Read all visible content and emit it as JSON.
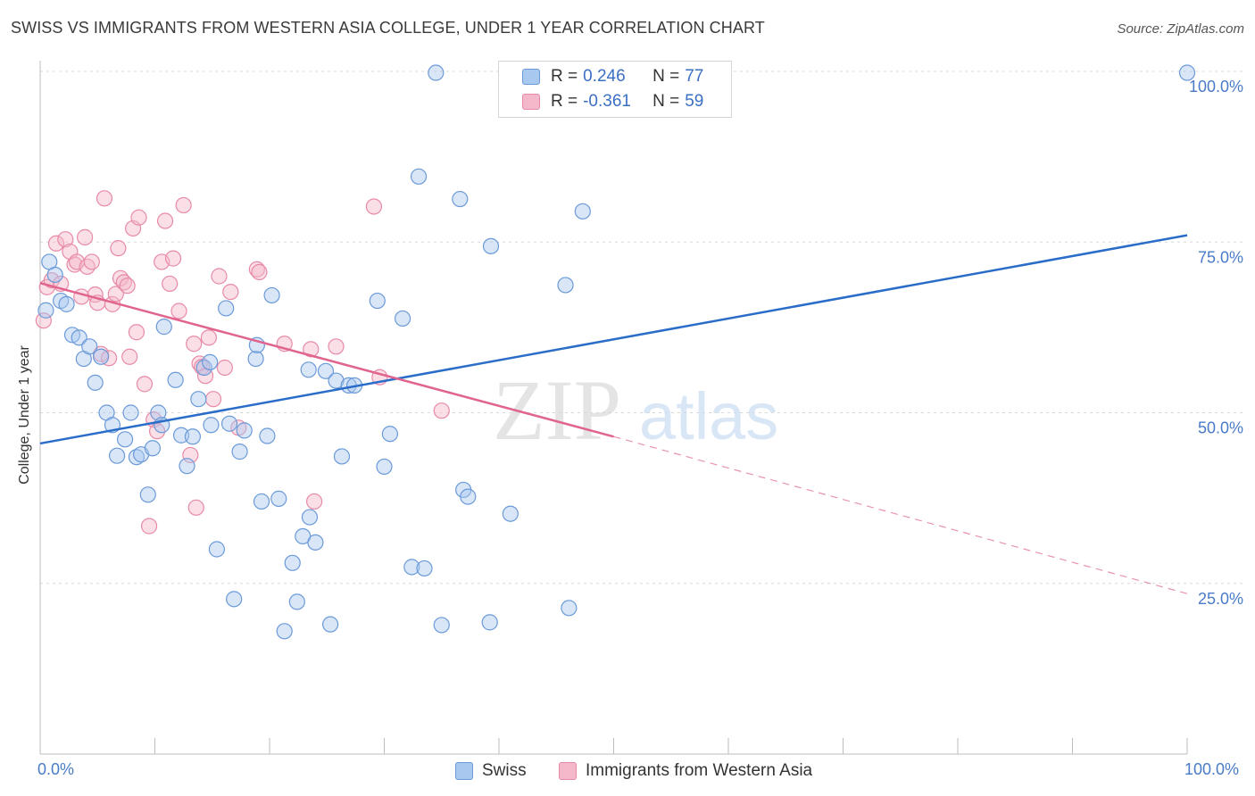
{
  "header": {
    "title": "SWISS VS IMMIGRANTS FROM WESTERN ASIA COLLEGE, UNDER 1 YEAR CORRELATION CHART",
    "source": "Source: ZipAtlas.com"
  },
  "legend_top": {
    "rows": [
      {
        "r_label": "R =",
        "r_value": "0.246",
        "n_label": "N =",
        "n_value": "77"
      },
      {
        "r_label": "R =",
        "r_value": "-0.361",
        "n_label": "N =",
        "n_value": "59"
      }
    ]
  },
  "legend_bottom": {
    "swiss": "Swiss",
    "immigrants": "Immigrants from Western Asia"
  },
  "axes": {
    "ylabel": "College, Under 1 year",
    "x_min_label": "0.0%",
    "x_max_label": "100.0%",
    "y_ticks": [
      "100.0%",
      "75.0%",
      "50.0%",
      "25.0%"
    ]
  },
  "watermark": {
    "part1": "ZIP",
    "part2": "atlas"
  },
  "colors": {
    "swiss_fill": "#a9c8ef",
    "swiss_stroke": "#6b9ad8",
    "swiss_line": "#2a6dc9",
    "imm_fill": "#f5b8ca",
    "imm_stroke": "#e88aa7",
    "imm_line": "#e0648e",
    "tick_label": "#4a7bc8"
  },
  "chart_data": {
    "type": "scatter",
    "xlabel": "",
    "ylabel": "College, Under 1 year",
    "xlim": [
      0,
      100
    ],
    "ylim": [
      0,
      100
    ],
    "grid": true,
    "legend_placement": "top-center",
    "series": [
      {
        "name": "Swiss",
        "r": 0.246,
        "n": 77,
        "trend": {
          "x": [
            0,
            100
          ],
          "y": [
            45.5,
            76.0
          ]
        },
        "points": [
          [
            0.5,
            65.0
          ],
          [
            0.8,
            72.1
          ],
          [
            1.3,
            70.2
          ],
          [
            1.8,
            66.4
          ],
          [
            2.3,
            65.9
          ],
          [
            2.8,
            61.4
          ],
          [
            3.4,
            61.0
          ],
          [
            3.8,
            57.9
          ],
          [
            4.3,
            59.7
          ],
          [
            4.8,
            54.4
          ],
          [
            5.3,
            58.2
          ],
          [
            5.8,
            50.0
          ],
          [
            6.3,
            48.2
          ],
          [
            6.7,
            43.7
          ],
          [
            7.4,
            46.1
          ],
          [
            7.9,
            50.0
          ],
          [
            8.4,
            43.5
          ],
          [
            8.8,
            43.9
          ],
          [
            9.4,
            38.0
          ],
          [
            9.8,
            44.8
          ],
          [
            10.3,
            50.0
          ],
          [
            10.6,
            48.2
          ],
          [
            10.8,
            62.6
          ],
          [
            11.8,
            54.8
          ],
          [
            12.3,
            46.7
          ],
          [
            12.8,
            42.2
          ],
          [
            13.3,
            46.5
          ],
          [
            13.8,
            52.0
          ],
          [
            14.3,
            56.6
          ],
          [
            14.8,
            57.4
          ],
          [
            14.9,
            48.2
          ],
          [
            15.4,
            30.0
          ],
          [
            16.2,
            65.3
          ],
          [
            16.5,
            48.4
          ],
          [
            16.9,
            22.7
          ],
          [
            17.4,
            44.3
          ],
          [
            17.8,
            47.4
          ],
          [
            18.8,
            57.9
          ],
          [
            18.9,
            59.9
          ],
          [
            19.3,
            37.0
          ],
          [
            19.8,
            46.6
          ],
          [
            20.2,
            67.2
          ],
          [
            20.8,
            37.4
          ],
          [
            21.3,
            18.0
          ],
          [
            22.0,
            28.0
          ],
          [
            22.4,
            22.3
          ],
          [
            22.9,
            31.9
          ],
          [
            23.4,
            56.3
          ],
          [
            23.5,
            34.7
          ],
          [
            24.0,
            31.0
          ],
          [
            24.9,
            56.1
          ],
          [
            25.3,
            19.0
          ],
          [
            25.8,
            54.7
          ],
          [
            26.3,
            43.6
          ],
          [
            26.9,
            54.0
          ],
          [
            27.4,
            54.0
          ],
          [
            29.4,
            66.4
          ],
          [
            30.0,
            42.1
          ],
          [
            30.5,
            46.9
          ],
          [
            31.6,
            63.8
          ],
          [
            32.4,
            27.4
          ],
          [
            33.0,
            84.6
          ],
          [
            33.5,
            27.2
          ],
          [
            34.5,
            99.8
          ],
          [
            35.0,
            18.9
          ],
          [
            36.6,
            81.3
          ],
          [
            36.9,
            38.7
          ],
          [
            37.3,
            37.7
          ],
          [
            39.3,
            74.4
          ],
          [
            39.2,
            19.3
          ],
          [
            41.0,
            35.2
          ],
          [
            41.9,
            99.8
          ],
          [
            43.0,
            99.8
          ],
          [
            45.8,
            68.7
          ],
          [
            46.1,
            21.4
          ],
          [
            47.3,
            79.5
          ],
          [
            100.0,
            99.8
          ]
        ]
      },
      {
        "name": "Immigrants from Western Asia",
        "r": -0.361,
        "n": 59,
        "trend": {
          "x": [
            0,
            50
          ],
          "y": [
            69.0,
            46.5
          ]
        },
        "trend_dashed": {
          "x": [
            50,
            100
          ],
          "y": [
            46.5,
            23.5
          ]
        },
        "points": [
          [
            0.3,
            63.5
          ],
          [
            0.6,
            68.4
          ],
          [
            1.0,
            69.4
          ],
          [
            1.4,
            74.8
          ],
          [
            1.8,
            68.9
          ],
          [
            2.2,
            75.4
          ],
          [
            2.6,
            73.6
          ],
          [
            3.0,
            71.7
          ],
          [
            3.2,
            72.1
          ],
          [
            3.6,
            67.0
          ],
          [
            3.9,
            75.7
          ],
          [
            4.1,
            71.4
          ],
          [
            4.5,
            72.1
          ],
          [
            4.8,
            67.3
          ],
          [
            5.0,
            66.1
          ],
          [
            5.3,
            58.6
          ],
          [
            5.6,
            81.4
          ],
          [
            6.0,
            58.0
          ],
          [
            6.3,
            65.9
          ],
          [
            6.6,
            67.4
          ],
          [
            6.8,
            74.1
          ],
          [
            7.0,
            69.7
          ],
          [
            7.3,
            69.1
          ],
          [
            7.6,
            68.6
          ],
          [
            7.8,
            58.2
          ],
          [
            8.1,
            77.0
          ],
          [
            8.4,
            61.8
          ],
          [
            8.6,
            78.6
          ],
          [
            9.1,
            54.2
          ],
          [
            9.5,
            33.4
          ],
          [
            9.9,
            49.0
          ],
          [
            10.2,
            47.3
          ],
          [
            10.6,
            72.1
          ],
          [
            10.9,
            78.1
          ],
          [
            11.3,
            68.9
          ],
          [
            11.6,
            72.6
          ],
          [
            12.1,
            64.9
          ],
          [
            12.5,
            80.4
          ],
          [
            13.1,
            43.8
          ],
          [
            13.4,
            60.1
          ],
          [
            13.6,
            36.1
          ],
          [
            13.9,
            57.2
          ],
          [
            14.1,
            56.7
          ],
          [
            14.4,
            55.4
          ],
          [
            14.7,
            61.0
          ],
          [
            15.1,
            52.0
          ],
          [
            15.6,
            70.0
          ],
          [
            16.1,
            56.6
          ],
          [
            16.6,
            67.7
          ],
          [
            17.3,
            47.8
          ],
          [
            18.9,
            71.0
          ],
          [
            19.1,
            70.6
          ],
          [
            21.3,
            60.1
          ],
          [
            23.6,
            59.3
          ],
          [
            23.9,
            37.0
          ],
          [
            25.8,
            59.7
          ],
          [
            29.1,
            80.2
          ],
          [
            29.6,
            55.2
          ],
          [
            35.0,
            50.3
          ]
        ]
      }
    ]
  }
}
